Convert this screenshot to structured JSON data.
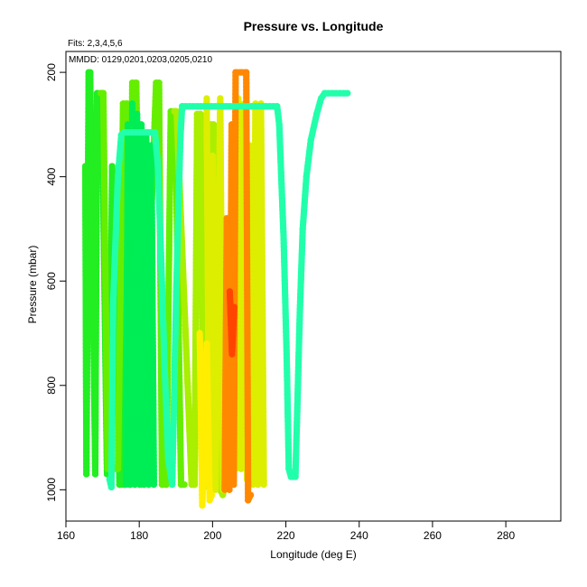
{
  "chart_data": {
    "type": "line",
    "title": "Pressure vs. Longitude",
    "xlabel": "Longitude (deg E)",
    "ylabel": "Pressure (mbar)",
    "xlim": [
      160,
      295
    ],
    "ylim": [
      1060,
      160
    ],
    "y_inverted": true,
    "x_ticks": [
      160,
      180,
      200,
      220,
      240,
      260,
      280
    ],
    "y_ticks": [
      200,
      400,
      600,
      800,
      1000
    ],
    "grid": false,
    "annotations": [
      "Fits: 2,3,4,5,6",
      "MMDD: 0129,0201,0203,0205,0210"
    ],
    "series": [
      {
        "color": "#22ee22",
        "x": [
          165.3,
          165.6,
          166.2,
          166.6,
          168.0,
          168.5,
          169.8,
          171.2,
          172.0,
          172.6,
          173.4,
          174.6,
          175.9,
          176.6
        ],
        "y": [
          380,
          970,
          200,
          200,
          970,
          240,
          240,
          970,
          970,
          380,
          440,
          990,
          990,
          310
        ]
      },
      {
        "color": "#66ee00",
        "x": [
          169.5,
          170.2,
          171.4,
          174.2,
          175.6,
          176.7,
          177.3,
          178.1,
          179.2,
          180.6,
          184.6,
          185.4,
          186.2,
          187.4,
          188.6,
          189.8,
          191.4,
          192.3
        ],
        "y": [
          240,
          240,
          960,
          960,
          260,
          260,
          990,
          220,
          220,
          990,
          220,
          220,
          990,
          990,
          275,
          275,
          990,
          990
        ]
      },
      {
        "color": "#00ee55",
        "x": [
          176.4,
          176.9,
          177.6,
          178.1,
          178.8,
          179.4,
          180.1,
          180.6,
          181.3,
          181.9,
          182.6,
          183.3,
          184.0
        ],
        "y": [
          990,
          300,
          990,
          260,
          990,
          280,
          990,
          300,
          990,
          320,
          990,
          340,
          990
        ]
      },
      {
        "color": "#aaee00",
        "x": [
          189.6,
          190.2,
          194.3,
          195.1,
          195.8,
          196.7,
          197.6,
          199.6,
          200.3,
          201.4,
          202.8,
          203.5
        ],
        "y": [
          275,
          275,
          990,
          990,
          280,
          280,
          995,
          300,
          300,
          990,
          1010,
          990
        ]
      },
      {
        "color": "#ddee00",
        "x": [
          198.4,
          199.1,
          200.0,
          200.8,
          202.1,
          202.9,
          203.4,
          204.2,
          205.0,
          206.3,
          207.0,
          207.8,
          208.6,
          209.4,
          210.1,
          211.0,
          211.7,
          212.4,
          213.2,
          214.0
        ],
        "y": [
          250,
          990,
          360,
          1000,
          250,
          1000,
          480,
          960,
          480,
          960,
          250,
          960,
          260,
          980,
          340,
          990,
          260,
          990,
          260,
          990
        ]
      },
      {
        "color": "#ffee00",
        "x": [
          196.5,
          197.2,
          198.4,
          199.2,
          199.8
        ],
        "y": [
          700,
          1030,
          720,
          1020,
          1010
        ]
      },
      {
        "color": "#ff8800",
        "x": [
          203.3,
          203.9,
          204.6,
          205.2,
          205.8,
          206.3,
          209.2,
          209.7,
          210.4
        ],
        "y": [
          1000,
          480,
          1000,
          300,
          990,
          200,
          200,
          1020,
          1010
        ]
      },
      {
        "color": "#ff4400",
        "x": [
          204.7,
          205.3,
          205.9
        ],
        "y": [
          620,
          740,
          650
        ]
      },
      {
        "color": "#22ffaa",
        "x": [
          171.9,
          172.4,
          172.9,
          174.2,
          175.1,
          175.9,
          183.4,
          184.3,
          185.1,
          186.0,
          186.9,
          187.9,
          189.0,
          190.1,
          191.2,
          191.7,
          217.6,
          218.2,
          219.4,
          220.2,
          220.8,
          221.4,
          222.0,
          222.6,
          223.1,
          223.8,
          224.6,
          225.6,
          226.8,
          228.4,
          229.6,
          230.6,
          236.8
        ],
        "y": [
          980,
          995,
          640,
          400,
          320,
          315,
          315,
          315,
          380,
          560,
          760,
          940,
          990,
          620,
          330,
          265,
          265,
          300,
          520,
          740,
          960,
          975,
          975,
          975,
          850,
          660,
          500,
          400,
          330,
          280,
          250,
          240,
          240
        ]
      }
    ]
  }
}
